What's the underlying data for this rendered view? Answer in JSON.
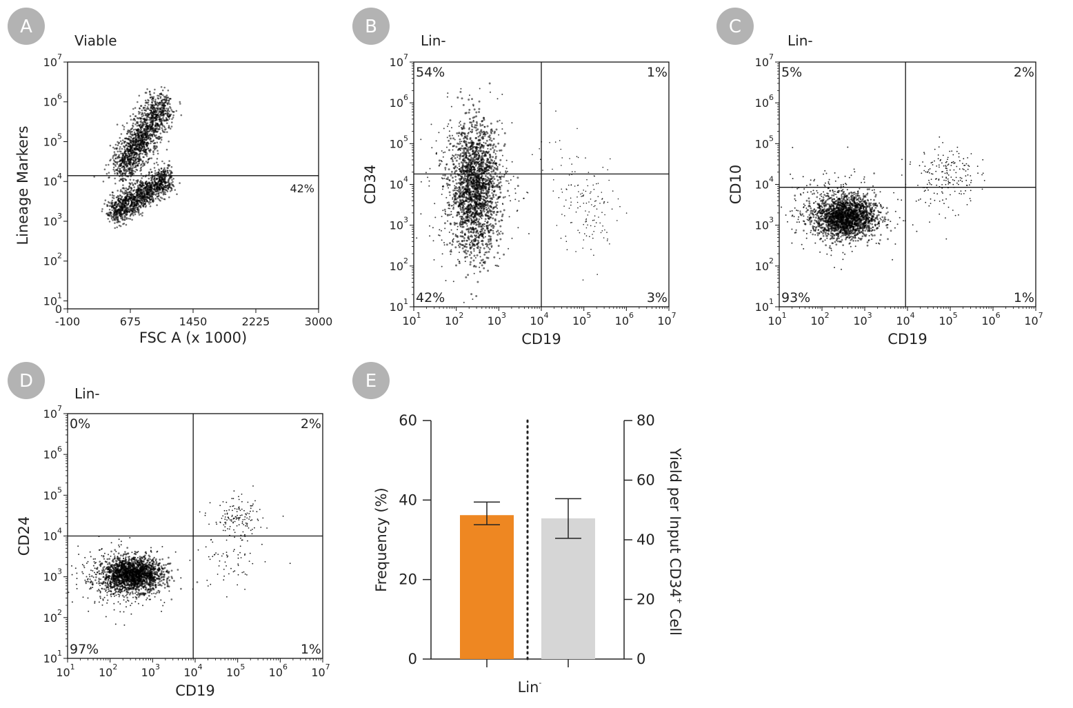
{
  "colors": {
    "badge": "#b3b3b3",
    "bar_orange": "#ee8722",
    "bar_gray": "#d6d6d6",
    "dots": "#000000"
  },
  "chart_data": [
    {
      "id": "A",
      "panel_label": "A",
      "type": "scatter",
      "title": "Viable",
      "xlabel": "FSC A (x 1000)",
      "ylabel": "Lineage Markers",
      "xscale": "linear",
      "yscale": "log",
      "xlim": [
        -100,
        3000
      ],
      "ylim": [
        0,
        10000000
      ],
      "xticks": [
        "-100",
        "675",
        "1450",
        "2225",
        "3000"
      ],
      "yticks_exponents": [
        "1",
        "2",
        "3",
        "4",
        "5",
        "6",
        "7"
      ],
      "ytick_zero": "0",
      "gate_y": 14000,
      "gate_label": "42%",
      "populations": [
        {
          "x_center": 950,
          "y_log_center": 5.3,
          "x_spread": 130,
          "y_log_spread": 0.55,
          "density": 0.5
        },
        {
          "x_center": 700,
          "y_log_center": 3.4,
          "x_spread": 160,
          "y_log_spread": 0.25,
          "density": 0.42
        }
      ]
    },
    {
      "id": "B",
      "panel_label": "B",
      "type": "scatter",
      "title": "Lin-",
      "xlabel": "CD19",
      "ylabel": "CD34",
      "xscale": "log",
      "yscale": "log",
      "xlim": [
        10,
        10000000
      ],
      "ylim": [
        10,
        10000000
      ],
      "ticks_exponents": [
        "1",
        "2",
        "3",
        "4",
        "5",
        "6",
        "7"
      ],
      "gate_x": 10000,
      "gate_y": 18000,
      "quadrants": {
        "upper_left": "54%",
        "upper_right": "1%",
        "lower_left": "42%",
        "lower_right": "3%"
      }
    },
    {
      "id": "C",
      "panel_label": "C",
      "type": "scatter",
      "title": "Lin-",
      "xlabel": "CD19",
      "ylabel": "CD10",
      "xscale": "log",
      "yscale": "log",
      "xlim": [
        10,
        10000000
      ],
      "ylim": [
        10,
        10000000
      ],
      "ticks_exponents": [
        "1",
        "2",
        "3",
        "4",
        "5",
        "6",
        "7"
      ],
      "gate_x": 9000,
      "gate_y": 8500,
      "quadrants": {
        "upper_left": "5%",
        "upper_right": "2%",
        "lower_left": "93%",
        "lower_right": "1%"
      }
    },
    {
      "id": "D",
      "panel_label": "D",
      "type": "scatter",
      "title": "Lin-",
      "xlabel": "CD19",
      "ylabel": "CD24",
      "xscale": "log",
      "yscale": "log",
      "xlim": [
        10,
        10000000
      ],
      "ylim": [
        10,
        10000000
      ],
      "ticks_exponents": [
        "1",
        "2",
        "3",
        "4",
        "5",
        "6",
        "7"
      ],
      "gate_x": 9000,
      "gate_y": 10000,
      "quadrants": {
        "upper_left": "0%",
        "upper_right": "2%",
        "lower_left": "97%",
        "lower_right": "1%"
      }
    },
    {
      "id": "E",
      "panel_label": "E",
      "type": "bar",
      "xlabel": "Lin",
      "xlabel_sup": "-",
      "ylabel_left": "Frequency (%)",
      "ylabel_right": "Yield per Input CD34",
      "ylabel_right_sup": "+",
      "ylabel_right_tail": " Cell",
      "ylim_left": [
        0,
        60
      ],
      "ylim_right": [
        0,
        80
      ],
      "yticks_left": [
        "0",
        "20",
        "40",
        "60"
      ],
      "yticks_right": [
        "0",
        "20",
        "40",
        "60",
        "80"
      ],
      "bars": [
        {
          "axis": "left",
          "value": 36.2,
          "error_low": 33.8,
          "error_high": 39.5,
          "color": "#ee8722"
        },
        {
          "axis": "right",
          "value": 47.2,
          "error_low": 40.5,
          "error_high": 53.8,
          "color": "#d6d6d6"
        }
      ]
    }
  ]
}
